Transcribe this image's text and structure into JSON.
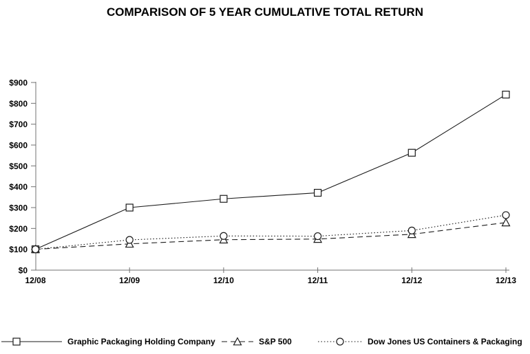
{
  "title": "COMPARISON OF 5 YEAR CUMULATIVE TOTAL RETURN",
  "chart_data": {
    "type": "line",
    "categories": [
      "12/08",
      "12/09",
      "12/10",
      "12/11",
      "12/12",
      "12/13"
    ],
    "series": [
      {
        "name": "Graphic Packaging Holding Company",
        "marker": "square",
        "line_style": "solid",
        "values": [
          100,
          300,
          342,
          371,
          563,
          842
        ]
      },
      {
        "name": "S&P 500",
        "marker": "triangle",
        "line_style": "dashed",
        "values": [
          100,
          126,
          146,
          149,
          172,
          228
        ]
      },
      {
        "name": "Dow Jones US Containers & Packaging",
        "marker": "circle",
        "line_style": "dotted",
        "values": [
          100,
          145,
          164,
          163,
          190,
          264
        ]
      }
    ],
    "y_tick_labels": [
      "$0",
      "$100",
      "$200",
      "$300",
      "$400",
      "$500",
      "$600",
      "$700",
      "$800",
      "$900"
    ],
    "ylim": [
      0,
      900
    ],
    "y_tick_step": 100,
    "xlabel": "",
    "ylabel": "",
    "grid": false,
    "legend_position": "bottom",
    "colors": {
      "series_stroke": "#1a1a1a",
      "axis": "#707070",
      "text": "#000000",
      "background": "#ffffff"
    }
  }
}
